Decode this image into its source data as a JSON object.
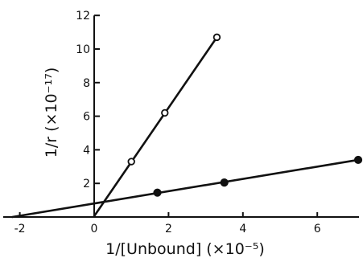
{
  "chart_data": {
    "type": "scatter",
    "title": "",
    "xlabel": "1/[Unbound] (×10⁻⁵)",
    "ylabel": "1/r (×10⁻¹⁷)",
    "xlim": [
      -2.5,
      7.5
    ],
    "ylim": [
      0,
      12
    ],
    "x_ticks": [
      -2,
      0,
      2,
      4,
      6
    ],
    "y_ticks": [
      2,
      4,
      6,
      8,
      10,
      12
    ],
    "grid": false,
    "series": [
      {
        "marker": "open-circle",
        "points": [
          [
            1.0,
            3.3
          ],
          [
            1.9,
            6.2
          ],
          [
            3.3,
            10.7
          ]
        ],
        "fit_line": [
          [
            0.0,
            0.05
          ],
          [
            3.3,
            10.7
          ]
        ]
      },
      {
        "marker": "filled-circle",
        "points": [
          [
            1.7,
            1.45
          ],
          [
            3.5,
            2.05
          ],
          [
            7.1,
            3.4
          ]
        ],
        "fit_line": [
          [
            -2.2,
            0.0
          ],
          [
            7.1,
            3.4
          ]
        ]
      }
    ]
  }
}
